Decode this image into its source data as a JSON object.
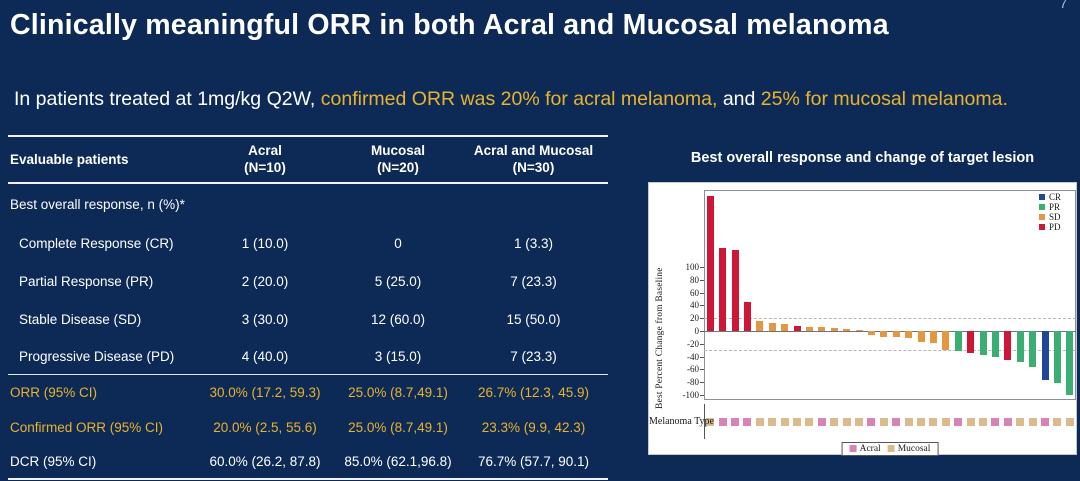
{
  "page_number": "7",
  "title": "Clinically meaningful ORR in both Acral and Mucosal melanoma",
  "subtitle": {
    "segments": [
      {
        "text": "In patients treated at 1mg/kg Q2W, ",
        "color": "white"
      },
      {
        "text": "confirmed ORR was 20% for acral melanoma,",
        "color": "gold"
      },
      {
        "text": " and ",
        "color": "white"
      },
      {
        "text": "25% for mucosal melanoma.",
        "color": "gold"
      }
    ]
  },
  "colors": {
    "background": "#0d2a57",
    "gold": "#e9b32d",
    "white": "#ffffff"
  },
  "table": {
    "columns": [
      {
        "label": "Evaluable patients",
        "sub": ""
      },
      {
        "label": "Acral",
        "sub": "(N=10)"
      },
      {
        "label": "Mucosal",
        "sub": "(N=20)"
      },
      {
        "label": "Acral and Mucosal",
        "sub": "(N=30)"
      }
    ],
    "section_label": "Best overall response, n (%)*",
    "rows": [
      {
        "label": "Complete Response (CR)",
        "values": [
          "1 (10.0)",
          "0",
          "1 (3.3)"
        ],
        "color": "white",
        "indent": true,
        "divider_before": false
      },
      {
        "label": "Partial Response (PR)",
        "values": [
          "2 (20.0)",
          "5 (25.0)",
          "7 (23.3)"
        ],
        "color": "white",
        "indent": true,
        "divider_before": false
      },
      {
        "label": "Stable Disease (SD)",
        "values": [
          "3 (30.0)",
          "12 (60.0)",
          "15 (50.0)"
        ],
        "color": "white",
        "indent": true,
        "divider_before": false
      },
      {
        "label": "Progressive Disease (PD)",
        "values": [
          "4 (40.0)",
          "3 (15.0)",
          "7 (23.3)"
        ],
        "color": "white",
        "indent": true,
        "divider_before": false
      },
      {
        "label": "ORR (95% CI)",
        "values": [
          "30.0% (17.2, 59.3)",
          "25.0% (8.7,49.1)",
          "26.7% (12.3, 45.9)"
        ],
        "color": "gold",
        "indent": false,
        "divider_before": true
      },
      {
        "label": "Confirmed ORR (95% CI)",
        "values": [
          "20.0% (2.5, 55.6)",
          "25.0% (8.7,49.1)",
          "23.3% (9.9, 42.3)"
        ],
        "color": "gold",
        "indent": false,
        "divider_before": false
      },
      {
        "label": "DCR (95% CI)",
        "values": [
          "60.0% (26.2, 87.8)",
          "85.0% (62.1,96.8)",
          "76.7% (57.7, 90.1)"
        ],
        "color": "white",
        "indent": false,
        "divider_before": false
      }
    ]
  },
  "chart_data": {
    "type": "bar",
    "title": "Best overall response and change of target lesion",
    "ylabel": "Best Percent Change from Baseline",
    "yticks": [
      100,
      80,
      60,
      40,
      20,
      0,
      -20,
      -40,
      -60,
      -80,
      -100
    ],
    "ylim": [
      -108,
      221
    ],
    "reference_lines": [
      20,
      -30
    ],
    "grid": false,
    "legend_position": "top-right",
    "response_legend": [
      "CR",
      "PR",
      "SD",
      "PD"
    ],
    "band_label": "Melanoma Type",
    "type_legend": [
      "Acral",
      "Mucosal"
    ],
    "colors": {
      "CR": "#1f4898",
      "PR": "#3cae73",
      "SD": "#e29840",
      "PD": "#ce1636",
      "Acral": "#d784b5",
      "Mucosal": "#dbba8c"
    },
    "bars": [
      {
        "value": 211,
        "response": "PD",
        "melanoma_type": "Mucosal"
      },
      {
        "value": 130,
        "response": "PD",
        "melanoma_type": "Acral"
      },
      {
        "value": 127,
        "response": "PD",
        "melanoma_type": "Acral"
      },
      {
        "value": 45,
        "response": "PD",
        "melanoma_type": "Acral"
      },
      {
        "value": 15,
        "response": "SD",
        "melanoma_type": "Mucosal"
      },
      {
        "value": 13,
        "response": "SD",
        "melanoma_type": "Mucosal"
      },
      {
        "value": 11,
        "response": "SD",
        "melanoma_type": "Mucosal"
      },
      {
        "value": 8,
        "response": "PD",
        "melanoma_type": "Mucosal"
      },
      {
        "value": 7,
        "response": "SD",
        "melanoma_type": "Mucosal"
      },
      {
        "value": 6,
        "response": "SD",
        "melanoma_type": "Acral"
      },
      {
        "value": 4,
        "response": "SD",
        "melanoma_type": "Mucosal"
      },
      {
        "value": 3,
        "response": "SD",
        "melanoma_type": "Mucosal"
      },
      {
        "value": 2,
        "response": "SD",
        "melanoma_type": "Mucosal"
      },
      {
        "value": -6,
        "response": "SD",
        "melanoma_type": "Acral"
      },
      {
        "value": -9,
        "response": "SD",
        "melanoma_type": "Mucosal"
      },
      {
        "value": -9,
        "response": "SD",
        "melanoma_type": "Acral"
      },
      {
        "value": -11,
        "response": "SD",
        "melanoma_type": "Mucosal"
      },
      {
        "value": -17,
        "response": "SD",
        "melanoma_type": "Mucosal"
      },
      {
        "value": -19,
        "response": "SD",
        "melanoma_type": "Mucosal"
      },
      {
        "value": -29,
        "response": "SD",
        "melanoma_type": "Mucosal"
      },
      {
        "value": -32,
        "response": "PR",
        "melanoma_type": "Acral"
      },
      {
        "value": -34,
        "response": "PD",
        "melanoma_type": "Mucosal"
      },
      {
        "value": -38,
        "response": "PR",
        "melanoma_type": "Mucosal"
      },
      {
        "value": -41,
        "response": "PR",
        "melanoma_type": "Acral"
      },
      {
        "value": -45,
        "response": "PD",
        "melanoma_type": "Acral"
      },
      {
        "value": -48,
        "response": "PR",
        "melanoma_type": "Mucosal"
      },
      {
        "value": -57,
        "response": "PR",
        "melanoma_type": "Mucosal"
      },
      {
        "value": -77,
        "response": "CR",
        "melanoma_type": "Acral"
      },
      {
        "value": -82,
        "response": "PR",
        "melanoma_type": "Mucosal"
      },
      {
        "value": -100,
        "response": "PR",
        "melanoma_type": "Mucosal"
      }
    ]
  }
}
